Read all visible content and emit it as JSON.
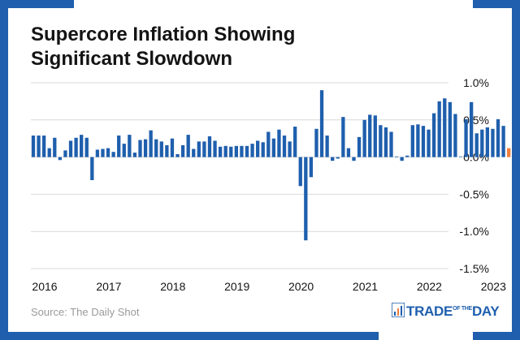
{
  "title_lines": [
    "Supercore Inflation Showing",
    "Significant Slowdown"
  ],
  "source": "Source: The Daily Shot",
  "logo": {
    "text_main": "TRADE",
    "text_of": "OF THE",
    "text_end": "DAY"
  },
  "colors": {
    "frame": "#1f5fad",
    "bar": "#1f5fad",
    "bar_highlight": "#f07f3c",
    "grid": "#d9d9d9",
    "text": "#141414"
  },
  "chart_data": {
    "type": "bar",
    "title": "Supercore Inflation Showing Significant Slowdown",
    "xlabel": "",
    "ylabel": "",
    "ylim": [
      -1.5,
      1.0
    ],
    "yticks": [
      1.0,
      0.5,
      0.0,
      -0.5,
      -1.0,
      -1.5
    ],
    "ytick_labels": [
      "1.0%",
      "0.5%",
      "0.0%",
      "-0.5%",
      "-1.0%",
      "-1.5%"
    ],
    "grid": true,
    "xtick_labels": [
      "2016",
      "2017",
      "2018",
      "2019",
      "2020",
      "2021",
      "2022",
      "2023"
    ],
    "start": "2016-01",
    "frequency": "monthly",
    "highlight_last": true,
    "values": [
      0.29,
      0.29,
      0.29,
      0.12,
      0.26,
      -0.04,
      0.09,
      0.22,
      0.26,
      0.3,
      0.26,
      -0.31,
      0.1,
      0.11,
      0.12,
      0.07,
      0.29,
      0.18,
      0.3,
      0.06,
      0.23,
      0.24,
      0.36,
      0.24,
      0.21,
      0.16,
      0.25,
      0.04,
      0.16,
      0.3,
      0.11,
      0.21,
      0.21,
      0.28,
      0.22,
      0.14,
      0.15,
      0.14,
      0.15,
      0.15,
      0.15,
      0.18,
      0.22,
      0.2,
      0.34,
      0.25,
      0.37,
      0.29,
      0.21,
      0.41,
      -0.39,
      -1.12,
      -0.27,
      0.38,
      0.9,
      0.29,
      -0.05,
      -0.02,
      0.54,
      0.12,
      -0.05,
      0.27,
      0.5,
      0.57,
      0.56,
      0.43,
      0.4,
      0.34,
      0.0,
      -0.05,
      0.02,
      0.43,
      0.44,
      0.42,
      0.37,
      0.59,
      0.75,
      0.79,
      0.74,
      0.58,
      0.0,
      0.51,
      0.74,
      0.32,
      0.37,
      0.4,
      0.38,
      0.51,
      0.42,
      0.12
    ]
  }
}
